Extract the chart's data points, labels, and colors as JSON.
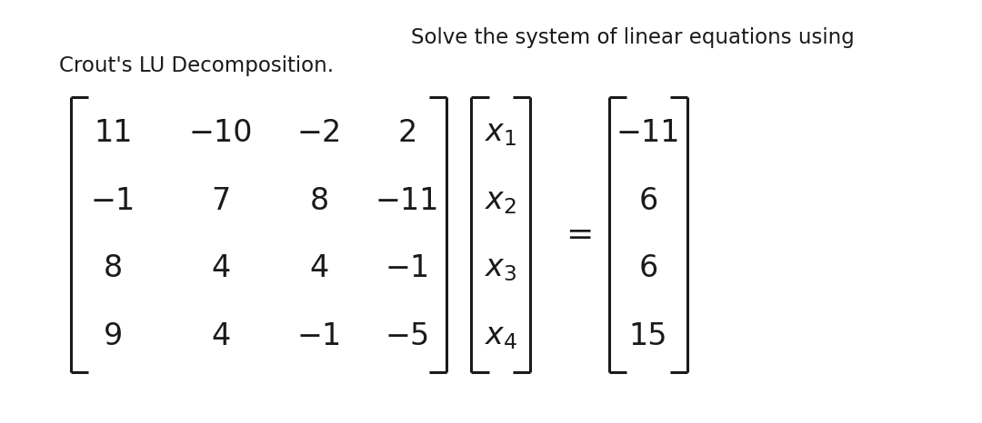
{
  "title_line1": "Solve the system of linear equations using",
  "title_line2": "Crout's LU Decomposition.",
  "matrix_A": [
    [
      "11",
      "−10",
      "−2",
      "2"
    ],
    [
      "−1",
      "7",
      "8",
      "−11"
    ],
    [
      "8",
      "4",
      "4",
      "−1"
    ],
    [
      "9",
      "4",
      "−1",
      "−5"
    ]
  ],
  "vector_x": [
    "$x_1$",
    "$x_2$",
    "$x_3$",
    "$x_4$"
  ],
  "vector_b": [
    "−11",
    "6",
    "6",
    "15"
  ],
  "bg_color": "#ffffff",
  "text_color": "#1a1a1a",
  "title_fontsize": 16.5,
  "matrix_fontsize": 24
}
